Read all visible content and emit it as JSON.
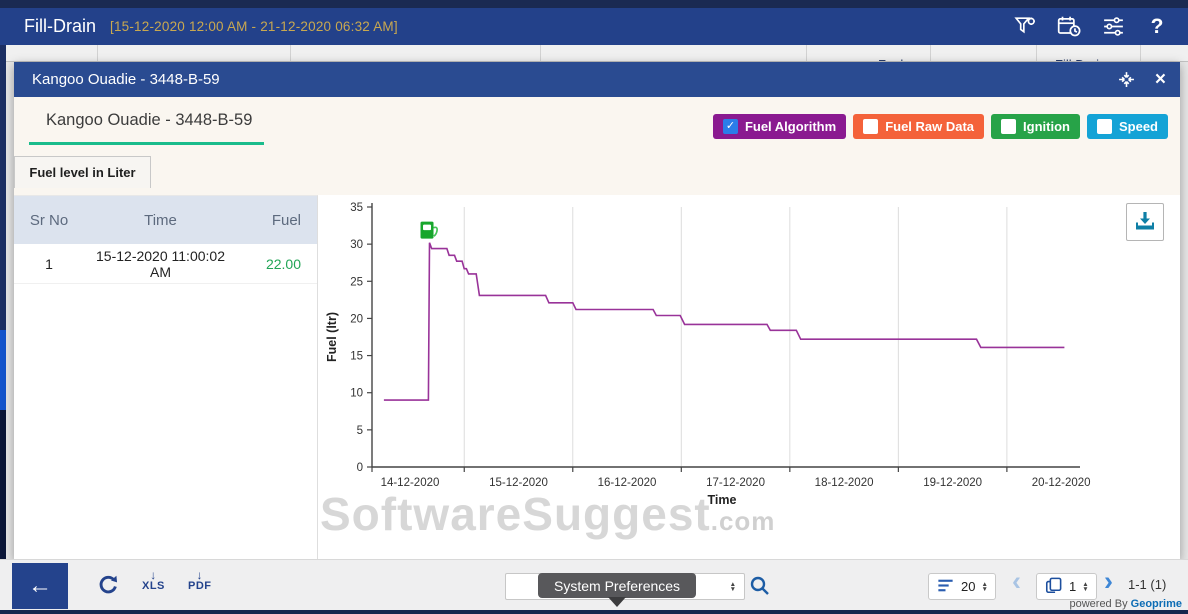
{
  "app_header": {
    "title": "Fill-Drain",
    "date_range": "[15-12-2020 12:00 AM - 21-12-2020 06:32 AM]"
  },
  "background": {
    "partial_columns": [
      "Fuel",
      "Fill Drain"
    ]
  },
  "modal": {
    "title": "Kangoo Ouadie - 3448-B-59",
    "vehicle_title": "Kangoo Ouadie - 3448-B-59",
    "tab_label": "Fuel level in Liter",
    "legend": [
      {
        "label": "Fuel Algorithm",
        "color": "#8a1a90",
        "checked": true
      },
      {
        "label": "Fuel Raw Data",
        "color": "#f4623a",
        "checked": false
      },
      {
        "label": "Ignition",
        "color": "#27a348",
        "checked": false
      },
      {
        "label": "Speed",
        "color": "#14a3d6",
        "checked": false
      }
    ],
    "table": {
      "columns": [
        "Sr No",
        "Time",
        "Fuel"
      ],
      "rows": [
        [
          "1",
          "15-12-2020 11:00:02 AM",
          "22.00"
        ]
      ]
    }
  },
  "chart_data": {
    "type": "line",
    "title": "",
    "xlabel": "Time",
    "ylabel": "Fuel (ltr)",
    "ylim": [
      0,
      35
    ],
    "yticks": [
      0,
      5,
      10,
      15,
      20,
      25,
      30,
      35
    ],
    "x_unit": "days since 14-12-2020 00:00",
    "x_range": [
      0.15,
      6.6
    ],
    "grid_boundaries": [
      1,
      2,
      3,
      4,
      5,
      6
    ],
    "x_tick_labels": [
      "14-12-2020",
      "15-12-2020",
      "16-12-2020",
      "17-12-2020",
      "18-12-2020",
      "19-12-2020",
      "20-12-2020"
    ],
    "legend_position": "top-right-buttons",
    "grid": true,
    "series": [
      {
        "name": "Fuel Algorithm",
        "color": "#993399",
        "points": [
          [
            0.26,
            9
          ],
          [
            0.67,
            9
          ],
          [
            0.68,
            30.2
          ],
          [
            0.7,
            29.4
          ],
          [
            0.84,
            29.4
          ],
          [
            0.86,
            28.5
          ],
          [
            0.91,
            28.5
          ],
          [
            0.93,
            27.7
          ],
          [
            0.98,
            27.7
          ],
          [
            1.0,
            26.7
          ],
          [
            1.02,
            26.7
          ],
          [
            1.04,
            26.0
          ],
          [
            1.11,
            26.0
          ],
          [
            1.14,
            23.1
          ],
          [
            1.75,
            23.1
          ],
          [
            1.78,
            22.1
          ],
          [
            2.0,
            22.1
          ],
          [
            2.03,
            21.2
          ],
          [
            2.74,
            21.2
          ],
          [
            2.77,
            20.4
          ],
          [
            2.99,
            20.4
          ],
          [
            3.03,
            19.2
          ],
          [
            3.79,
            19.2
          ],
          [
            3.82,
            18.4
          ],
          [
            4.06,
            18.4
          ],
          [
            4.1,
            17.2
          ],
          [
            5.72,
            17.2
          ],
          [
            5.76,
            16.1
          ],
          [
            6.53,
            16.1
          ]
        ]
      }
    ],
    "events": [
      {
        "type": "fuel-fill",
        "x": 0.68,
        "value": 30.2,
        "icon": "fuel-pump-icon"
      }
    ]
  },
  "watermark": {
    "text": "SoftwareSuggest",
    "suffix": ".com"
  },
  "toolbar": {
    "xls_label": "XLS",
    "pdf_label": "PDF",
    "tooltip": "System Preferences",
    "page_size": "20",
    "page_number": "1",
    "range_label": "1-1 (1)"
  },
  "footer": {
    "powered_prefix": "powered By ",
    "brand": "Geoprime"
  },
  "icons": {
    "check": "✓",
    "close": "×",
    "back_arrow": "←",
    "down_arrow": "↓",
    "prev": "‹",
    "next": "›",
    "spin_up": "▲",
    "spin_down": "▼",
    "help": "?"
  },
  "colors": {
    "header": "#23418a",
    "modal_titlebar": "#2a4b91",
    "accent_green_underline": "#1abc8c",
    "chart_line": "#993399",
    "fuel_value": "#21a556",
    "table_header_bg": "#dce3ee",
    "download_icon": "#0e7fa6"
  }
}
